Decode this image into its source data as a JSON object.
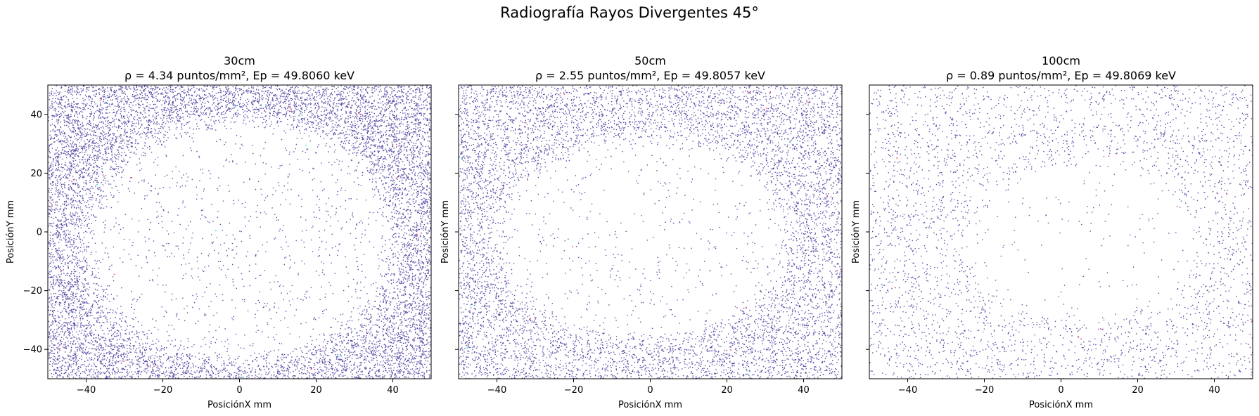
{
  "figure": {
    "suptitle": "Radiografía Rayos Divergentes 45°"
  },
  "colors": {
    "points_main": "#5b4ea6",
    "points_minor_red": "#e0506a",
    "points_minor_cyan": "#4ac8d8",
    "axes_edge": "#000000",
    "background": "#ffffff"
  },
  "chart_data": [
    {
      "type": "scatter",
      "title": "30cm",
      "subtitle": "ρ = 4.34 puntos/mm², Ep = 49.8060 keV",
      "xlabel": "PosiciónX mm",
      "ylabel": "PosiciónY mm",
      "xlim": [
        -50,
        50
      ],
      "ylim": [
        -50,
        50
      ],
      "xticks": [
        -40,
        -20,
        0,
        20,
        40
      ],
      "yticks": [
        -40,
        -20,
        0,
        20,
        40
      ],
      "xtick_labels": [
        "−40",
        "−20",
        "0",
        "20",
        "40"
      ],
      "ytick_labels": [
        "−40",
        "−20",
        "0",
        "20",
        "40"
      ],
      "show_ytick_labels": true,
      "grid": false,
      "density_points_per_mm2": 4.34,
      "mean_energy_keV": 49.806,
      "hole": {
        "center_x": 0,
        "center_y": -3,
        "semi_axis_x": 40,
        "semi_axis_y": 41,
        "inner_density_ratio": 0.08
      }
    },
    {
      "type": "scatter",
      "title": "50cm",
      "subtitle": "ρ = 2.55 puntos/mm², Ep = 49.8057 keV",
      "xlabel": "PosiciónX mm",
      "ylabel": "PosiciónY mm",
      "xlim": [
        -50,
        50
      ],
      "ylim": [
        -50,
        50
      ],
      "xticks": [
        -40,
        -20,
        0,
        20,
        40
      ],
      "yticks": [
        -40,
        -20,
        0,
        20,
        40
      ],
      "xtick_labels": [
        "−40",
        "−20",
        "0",
        "20",
        "40"
      ],
      "ytick_labels": [
        "−40",
        "−20",
        "0",
        "20",
        "40"
      ],
      "show_ytick_labels": false,
      "grid": false,
      "density_points_per_mm2": 2.55,
      "mean_energy_keV": 49.8057,
      "hole": {
        "center_x": -2,
        "center_y": -2,
        "semi_axis_x": 37,
        "semi_axis_y": 34,
        "inner_density_ratio": 0.09
      }
    },
    {
      "type": "scatter",
      "title": "100cm",
      "subtitle": "ρ = 0.89 puntos/mm², Ep = 49.8069 keV",
      "xlabel": "PosiciónX mm",
      "ylabel": "PosiciónY mm",
      "xlim": [
        -50,
        50
      ],
      "ylim": [
        -50,
        50
      ],
      "xticks": [
        -40,
        -20,
        0,
        20,
        40
      ],
      "yticks": [
        -40,
        -20,
        0,
        20,
        40
      ],
      "xtick_labels": [
        "−40",
        "−20",
        "0",
        "20",
        "40"
      ],
      "ytick_labels": [
        "−40",
        "−20",
        "0",
        "20",
        "40"
      ],
      "show_ytick_labels": false,
      "grid": false,
      "density_points_per_mm2": 0.89,
      "mean_energy_keV": 49.8069,
      "hole": {
        "center_x": 6,
        "center_y": -3,
        "semi_axis_x": 29,
        "semi_axis_y": 26,
        "inner_density_ratio": 0.1
      }
    }
  ]
}
